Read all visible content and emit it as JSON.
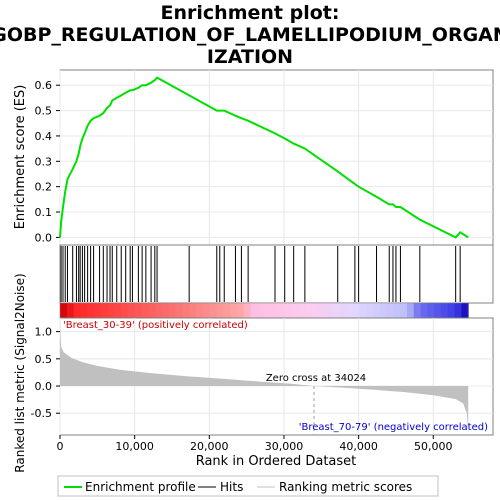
{
  "chart_data": {
    "type": "line",
    "title_lines": [
      "Enrichment plot:",
      "GOBP_REGULATION_OF_LAMELLIPODIUM_ORGAN",
      "IZATION"
    ],
    "es_panel": {
      "ylabel": "Enrichment score (ES)",
      "ylim": [
        -0.03,
        0.66
      ],
      "yticks": [
        0.0,
        0.1,
        0.2,
        0.3,
        0.4,
        0.5,
        0.6
      ],
      "ytick_labels": [
        "0.0",
        "0.1",
        "0.2",
        "0.3",
        "0.4",
        "0.5",
        "0.6"
      ]
    },
    "metric_panel": {
      "ylabel": "Ranked list metric (Signal2Noise)",
      "ylim": [
        -0.9,
        1.25
      ],
      "yticks": [
        -0.5,
        0.0,
        0.5,
        1.0
      ],
      "ytick_labels": [
        "-0.5",
        "0.0",
        "0.5",
        "1.0"
      ],
      "pos_label": "'Breast_30-39' (positively correlated)",
      "neg_label": "'Breast_70-79' (negatively correlated)",
      "zero_cross_label": "Zero cross at 34024",
      "zero_cross": 34024
    },
    "xlabel": "Rank in Ordered Dataset",
    "xlim": [
      0,
      58000
    ],
    "xticks": [
      0,
      10000,
      20000,
      30000,
      40000,
      50000
    ],
    "xtick_labels": [
      "0",
      "10,000",
      "20,000",
      "30,000",
      "40,000",
      "50,000"
    ],
    "dataset_size": 54675,
    "hits": [
      150,
      400,
      700,
      1000,
      1700,
      2200,
      2500,
      2700,
      3000,
      3300,
      3700,
      4100,
      4500,
      5300,
      5800,
      6300,
      6700,
      7000,
      7600,
      8200,
      8800,
      9400,
      9700,
      10500,
      11000,
      11500,
      12200,
      12700,
      13000,
      17300,
      21000,
      21400,
      22000,
      23500,
      24300,
      25200,
      28800,
      30100,
      31300,
      32800,
      37200,
      39500,
      40000,
      42400,
      44100,
      44600,
      45000,
      45600,
      48200,
      53000,
      53600
    ],
    "enrichment_profile": [
      [
        0,
        0.0
      ],
      [
        150,
        0.06
      ],
      [
        400,
        0.12
      ],
      [
        700,
        0.18
      ],
      [
        1000,
        0.23
      ],
      [
        1700,
        0.27
      ],
      [
        2200,
        0.3
      ],
      [
        2500,
        0.33
      ],
      [
        2700,
        0.36
      ],
      [
        3000,
        0.39
      ],
      [
        3300,
        0.41
      ],
      [
        3700,
        0.44
      ],
      [
        4100,
        0.46
      ],
      [
        4500,
        0.47
      ],
      [
        5300,
        0.48
      ],
      [
        5800,
        0.49
      ],
      [
        6300,
        0.51
      ],
      [
        6700,
        0.52
      ],
      [
        7000,
        0.54
      ],
      [
        7600,
        0.55
      ],
      [
        8200,
        0.56
      ],
      [
        8800,
        0.57
      ],
      [
        9400,
        0.58
      ],
      [
        9700,
        0.58
      ],
      [
        10500,
        0.59
      ],
      [
        11000,
        0.6
      ],
      [
        11500,
        0.6
      ],
      [
        12200,
        0.61
      ],
      [
        12700,
        0.62
      ],
      [
        13000,
        0.63
      ],
      [
        17300,
        0.56
      ],
      [
        21000,
        0.5
      ],
      [
        21400,
        0.5
      ],
      [
        22000,
        0.5
      ],
      [
        23500,
        0.48
      ],
      [
        24300,
        0.47
      ],
      [
        25200,
        0.46
      ],
      [
        28800,
        0.41
      ],
      [
        30100,
        0.39
      ],
      [
        31300,
        0.37
      ],
      [
        32800,
        0.35
      ],
      [
        37200,
        0.26
      ],
      [
        39500,
        0.21
      ],
      [
        40000,
        0.2
      ],
      [
        42400,
        0.16
      ],
      [
        44100,
        0.13
      ],
      [
        44600,
        0.13
      ],
      [
        45000,
        0.12
      ],
      [
        45600,
        0.12
      ],
      [
        48200,
        0.07
      ],
      [
        53000,
        0.0
      ],
      [
        53600,
        0.02
      ],
      [
        54675,
        0.0
      ]
    ],
    "metric_curve": [
      [
        0,
        1.2
      ],
      [
        150,
        0.72
      ],
      [
        500,
        0.62
      ],
      [
        1500,
        0.52
      ],
      [
        3000,
        0.44
      ],
      [
        5000,
        0.37
      ],
      [
        8000,
        0.3
      ],
      [
        12000,
        0.24
      ],
      [
        17000,
        0.18
      ],
      [
        22000,
        0.13
      ],
      [
        27000,
        0.08
      ],
      [
        31000,
        0.04
      ],
      [
        34024,
        0.0
      ],
      [
        38000,
        -0.03
      ],
      [
        42000,
        -0.07
      ],
      [
        46000,
        -0.11
      ],
      [
        50000,
        -0.17
      ],
      [
        53000,
        -0.24
      ],
      [
        54000,
        -0.32
      ],
      [
        54500,
        -0.5
      ],
      [
        54675,
        -0.87
      ]
    ],
    "legend": [
      "Enrichment profile",
      "Hits",
      "Ranking metric scores"
    ],
    "colors": {
      "profile": "#00e000",
      "hits": "#000000",
      "metric_fill": "#c0c0c0",
      "pos_text": "#cc0000",
      "neg_text": "#0000cc",
      "grid": "#e8e8e8"
    }
  }
}
